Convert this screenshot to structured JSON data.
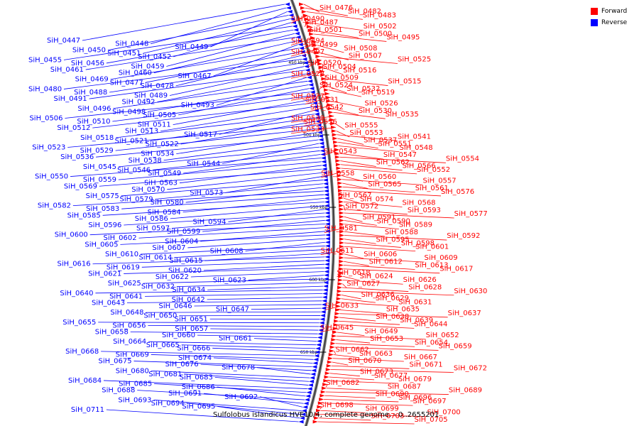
{
  "legend": {
    "forward_label": "Forward",
    "reverse_label": "Reverse",
    "forward_color": "#ff0000",
    "reverse_color": "#0000ff"
  },
  "caption": "Sulfolobus islandicus HVE10/4, complete genome. - 0..2655201",
  "ticks": [
    "450 kbp",
    "500 kbp",
    "550 kbp",
    "600 kbp",
    "650 kbp"
  ],
  "reverse_genes": [
    "SiH_0447",
    "SiH_0448",
    "SiH_0449",
    "SiH_0450",
    "SiH_0451",
    "SiH_0452",
    "SiH_0455",
    "SiH_0456",
    "SiH_0459",
    "SiH_0461",
    "SiH_0460",
    "SiH_0467",
    "SiH_0469",
    "SiH_0477",
    "SiH_0478",
    "SiH_0480",
    "SiH_0488",
    "SiH_0489",
    "SiH_0491",
    "SiH_0492",
    "SiH_0493",
    "SiH_0496",
    "SiH_0498",
    "SiH_0505",
    "SiH_0506",
    "SiH_0510",
    "SiH_0511",
    "SiH_0512",
    "SiH_0513",
    "SiH_0517",
    "SiH_0518",
    "SiH_0521",
    "SiH_0522",
    "SiH_0523",
    "SiH_0529",
    "SiH_0534",
    "SiH_0536",
    "SiH_0538",
    "SiH_0544",
    "SiH_0545",
    "SiH_0546",
    "SiH_0549",
    "SiH_0550",
    "SiH_0559",
    "SiH_0563",
    "SiH_0569",
    "SiH_0570",
    "SiH_0573",
    "SiH_0575",
    "SiH_0579",
    "SiH_0580",
    "SiH_0582",
    "SiH_0583",
    "SiH_0584",
    "SiH_0585",
    "SiH_0586",
    "SiH_0594",
    "SiH_0596",
    "SiH_0597",
    "SiH_0599",
    "SiH_0600",
    "SiH_0602",
    "SiH_0604",
    "SiH_0605",
    "SiH_0607",
    "SiH_0608",
    "SiH_0610",
    "SiH_0614",
    "SiH_0615",
    "SiH_0616",
    "SiH_0619",
    "SiH_0620",
    "SiH_0621",
    "SiH_0622",
    "SiH_0623",
    "SiH_0625",
    "SiH_0632",
    "SiH_0634",
    "SiH_0640",
    "SiH_0641",
    "SiH_0642",
    "SiH_0643",
    "SiH_0646",
    "SiH_0647",
    "SiH_0648",
    "SiH_0650",
    "SiH_0651",
    "SiH_0655",
    "SiH_0656",
    "SiH_0657",
    "SiH_0658",
    "SiH_0660",
    "SiH_0661",
    "SiH_0664",
    "SiH_0665",
    "SiH_0666",
    "SiH_0668",
    "SiH_0669",
    "SiH_0674",
    "SiH_0675",
    "SiH_0676",
    "SiH_0678",
    "SiH_0680",
    "SiH_0681",
    "SiH_0683",
    "SiH_0684",
    "SiH_0685",
    "SiH_0686",
    "SiH_0688",
    "SiH_0691",
    "SiH_0692",
    "SiH_0693",
    "SiH_0694",
    "SiH_0695",
    "SiH_0711"
  ],
  "forward_genes": [
    "SiH_0476",
    "SiH_0482",
    "SiH_0483",
    "SiH_0490",
    "SiH_0487",
    "SiH_0502",
    "SiH_0501",
    "SiH_0500",
    "SiH_0495",
    "SiH_0494",
    "SiH_0499",
    "SiH_0508",
    "SiH_0497",
    "SiH_0507",
    "SiH_0525",
    "SiH_0520",
    "SiH_0504",
    "SiH_0516",
    "SiH_0528",
    "SiH_0509",
    "SiH_0515",
    "SiH_0524",
    "SiH_0532",
    "SiH_0519",
    "SiH_0527",
    "SiH_0531",
    "SiH_0526",
    "SiH_0542",
    "SiH_0530",
    "SiH_0535",
    "SiH_0539",
    "SiH_0556",
    "SiH_0555",
    "SiH_0533",
    "SiH_0553",
    "SiH_0541",
    "SiH_0537",
    "SiH_0551",
    "SiH_0548",
    "SiH_0543",
    "SiH_0547",
    "SiH_0554",
    "SiH_0562",
    "SiH_0566",
    "SiH_0552",
    "SiH_0558",
    "SiH_0560",
    "SiH_0557",
    "SiH_0565",
    "SiH_0561",
    "SiH_0576",
    "SiH_0567",
    "SiH_0574",
    "SiH_0568",
    "SiH_0572",
    "SiH_0593",
    "SiH_0577",
    "SiH_0591",
    "SiH_0590",
    "SiH_0589",
    "SiH_0581",
    "SiH_0588",
    "SiH_0592",
    "SiH_0595",
    "SiH_0598",
    "SiH_0601",
    "SiH_0611",
    "SiH_0606",
    "SiH_0609",
    "SiH_0612",
    "SiH_0613",
    "SiH_0617",
    "SiH_0618",
    "SiH_0624",
    "SiH_0626",
    "SiH_0627",
    "SiH_0628",
    "SiH_0630",
    "SiH_0636",
    "SiH_0629",
    "SiH_0631",
    "SiH_0633",
    "SiH_0635",
    "SiH_0637",
    "SiH_0638",
    "SiH_0639",
    "SiH_0644",
    "SiH_0645",
    "SiH_0649",
    "SiH_0652",
    "SiH_0653",
    "SiH_0654",
    "SiH_0659",
    "SiH_0662",
    "SiH_0663",
    "SiH_0667",
    "SiH_0670",
    "SiH_0671",
    "SiH_0672",
    "SiH_0673",
    "SiH_0677",
    "SiH_0679",
    "SiH_0682",
    "SiH_0687",
    "SiH_0689",
    "SiH_0690",
    "SiH_0696",
    "SiH_0697",
    "SiH_0698",
    "SiH_0699",
    "SiH_0700",
    "SiH_0703",
    "SiH_0705"
  ]
}
